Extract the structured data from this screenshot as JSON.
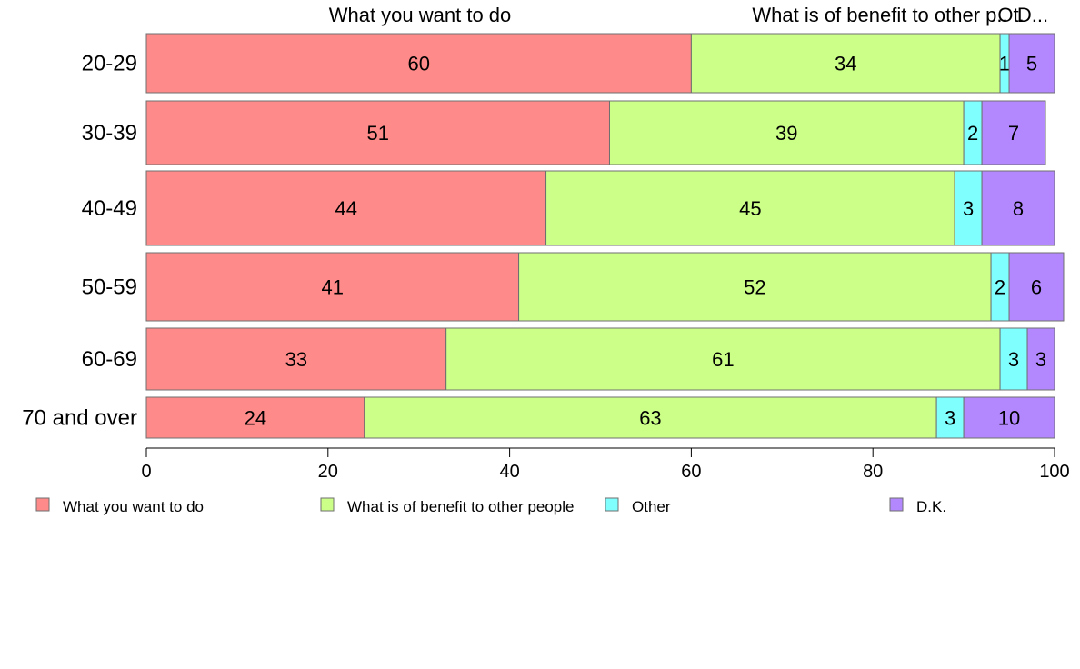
{
  "chart_data": {
    "type": "bar",
    "orientation": "horizontal",
    "stacked": true,
    "categories": [
      "20-29",
      "30-39",
      "40-49",
      "50-59",
      "60-69",
      "70 and over"
    ],
    "series": [
      {
        "name": "What you want to do",
        "color": "#FF8A8A",
        "values": [
          60,
          51,
          44,
          41,
          33,
          24
        ]
      },
      {
        "name": "What is of benefit to other people",
        "color": "#CCFF88",
        "values": [
          34,
          39,
          45,
          52,
          61,
          63
        ]
      },
      {
        "name": "Other",
        "color": "#80FFFF",
        "values": [
          1,
          2,
          3,
          2,
          3,
          3
        ]
      },
      {
        "name": "D.K.",
        "color": "#B388FF",
        "values": [
          5,
          7,
          8,
          6,
          3,
          10
        ]
      }
    ],
    "top_labels": [
      "What you want to do",
      "What is of benefit to other p..",
      "Ot.",
      "D..."
    ],
    "xlim": [
      0,
      100
    ],
    "xticks": [
      0,
      20,
      40,
      60,
      80,
      100
    ],
    "grid": false,
    "legend_position": "bottom"
  }
}
